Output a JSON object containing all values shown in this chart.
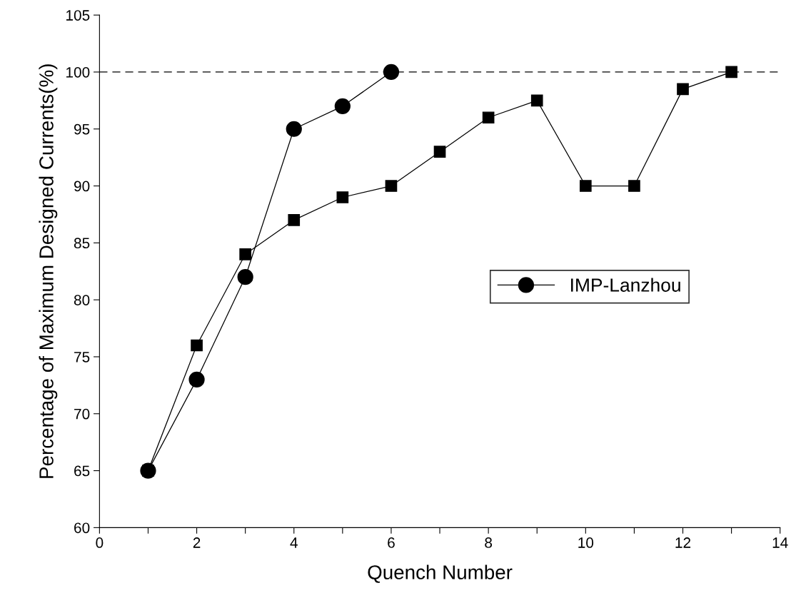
{
  "chart_data": {
    "type": "line",
    "xlabel": "Quench Number",
    "ylabel": "Percentage of Maximum Designed Currents(%)",
    "xlim": [
      0,
      14
    ],
    "xticks": [
      0,
      {
        "value": 1,
        "label": null
      },
      2,
      {
        "value": 3,
        "label": null
      },
      4,
      {
        "value": 5,
        "label": null
      },
      6,
      {
        "value": 7,
        "label": null
      },
      8,
      {
        "value": 9,
        "label": null
      },
      10,
      {
        "value": 11,
        "label": null
      },
      12,
      {
        "value": 13,
        "label": null
      },
      14
    ],
    "ylim": [
      60,
      105
    ],
    "yticks": [
      60,
      65,
      70,
      75,
      80,
      85,
      90,
      95,
      100,
      105
    ],
    "grid": false,
    "legend": "right",
    "ref_lines": [
      {
        "axis": "y",
        "value": 100,
        "color": "#000000",
        "line_style": "dashed"
      }
    ],
    "series": [
      {
        "name": "IMP-Lanzhou",
        "color": "#000000",
        "marker": "circle",
        "x": [
          1,
          2,
          3,
          4,
          5,
          6
        ],
        "values": [
          65,
          73,
          82,
          95,
          97,
          100
        ]
      },
      {
        "color": "#000000",
        "marker": "square",
        "x": [
          1,
          2,
          3,
          4,
          5,
          6,
          7,
          8,
          9,
          10,
          11,
          12,
          13
        ],
        "values": [
          65,
          76,
          84,
          87,
          89,
          90,
          93,
          96,
          97.5,
          90,
          90,
          98.5,
          100
        ]
      }
    ]
  }
}
